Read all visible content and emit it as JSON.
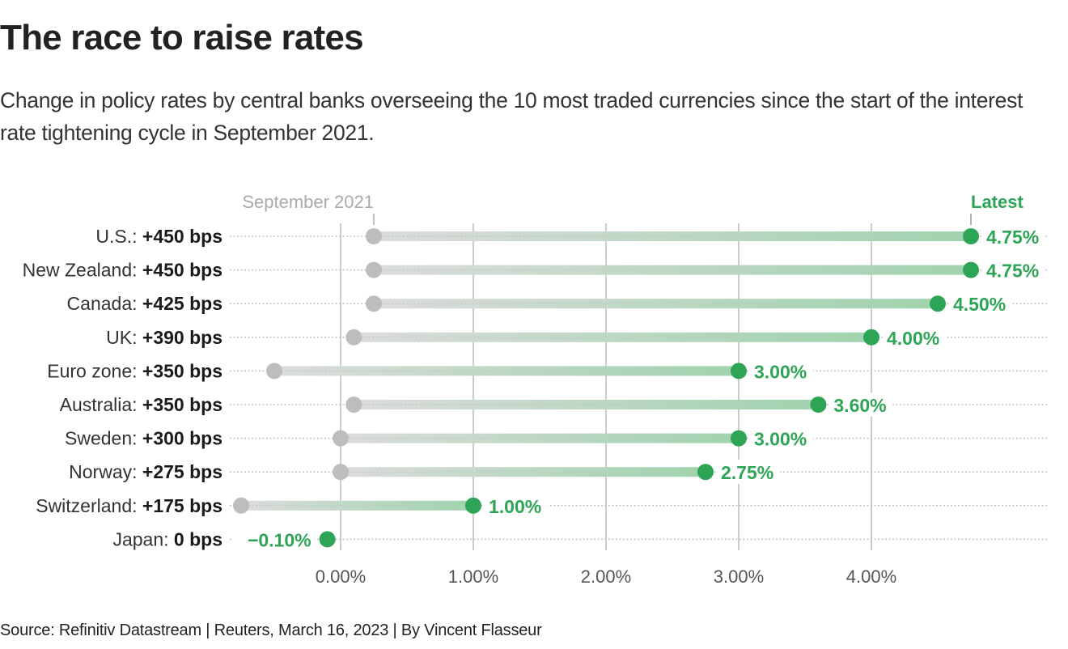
{
  "header": {
    "title": "The race to raise rates",
    "subtitle": "Change in policy rates by central banks overseeing the 10 most traded currencies since the start of the interest rate tightening cycle in September 2021."
  },
  "footer": {
    "source": "Source: Refinitiv Datastream | Reuters, March 16, 2023 | By Vincent Flasseur"
  },
  "colors": {
    "accent": "#2ea556",
    "start_dot": "#bdbdbd",
    "gridline": "#bbbbbb",
    "dotted_line": "#c4c4c4"
  },
  "chart_data": {
    "type": "dumbbell",
    "title": "The race to raise rates",
    "xlabel": "",
    "ylabel": "",
    "xlim": [
      -0.8,
      5.3
    ],
    "x_ticks": [
      0,
      1,
      2,
      3,
      4
    ],
    "x_tick_labels": [
      "0.00%",
      "1.00%",
      "2.00%",
      "3.00%",
      "4.00%"
    ],
    "grid": true,
    "annotations": {
      "start": "September 2021",
      "end": "Latest"
    },
    "categories": [
      "U.S.",
      "New Zealand",
      "Canada",
      "UK",
      "Euro zone",
      "Australia",
      "Sweden",
      "Norway",
      "Switzerland",
      "Japan"
    ],
    "series": [
      {
        "name": "September 2021",
        "values": [
          0.25,
          0.25,
          0.25,
          0.1,
          -0.5,
          0.1,
          0.0,
          0.0,
          -0.75,
          -0.1
        ]
      },
      {
        "name": "Latest",
        "values": [
          4.75,
          4.75,
          4.5,
          4.0,
          3.0,
          3.6,
          3.0,
          2.75,
          1.0,
          -0.1
        ]
      }
    ],
    "change_labels": [
      "+450 bps",
      "+450 bps",
      "+425 bps",
      "+390 bps",
      "+350 bps",
      "+350 bps",
      "+300 bps",
      "+275 bps",
      "+175 bps",
      "0 bps"
    ],
    "latest_labels": [
      "4.75%",
      "4.75%",
      "4.50%",
      "4.00%",
      "3.00%",
      "3.60%",
      "3.00%",
      "2.75%",
      "1.00%",
      "−0.10%"
    ]
  }
}
